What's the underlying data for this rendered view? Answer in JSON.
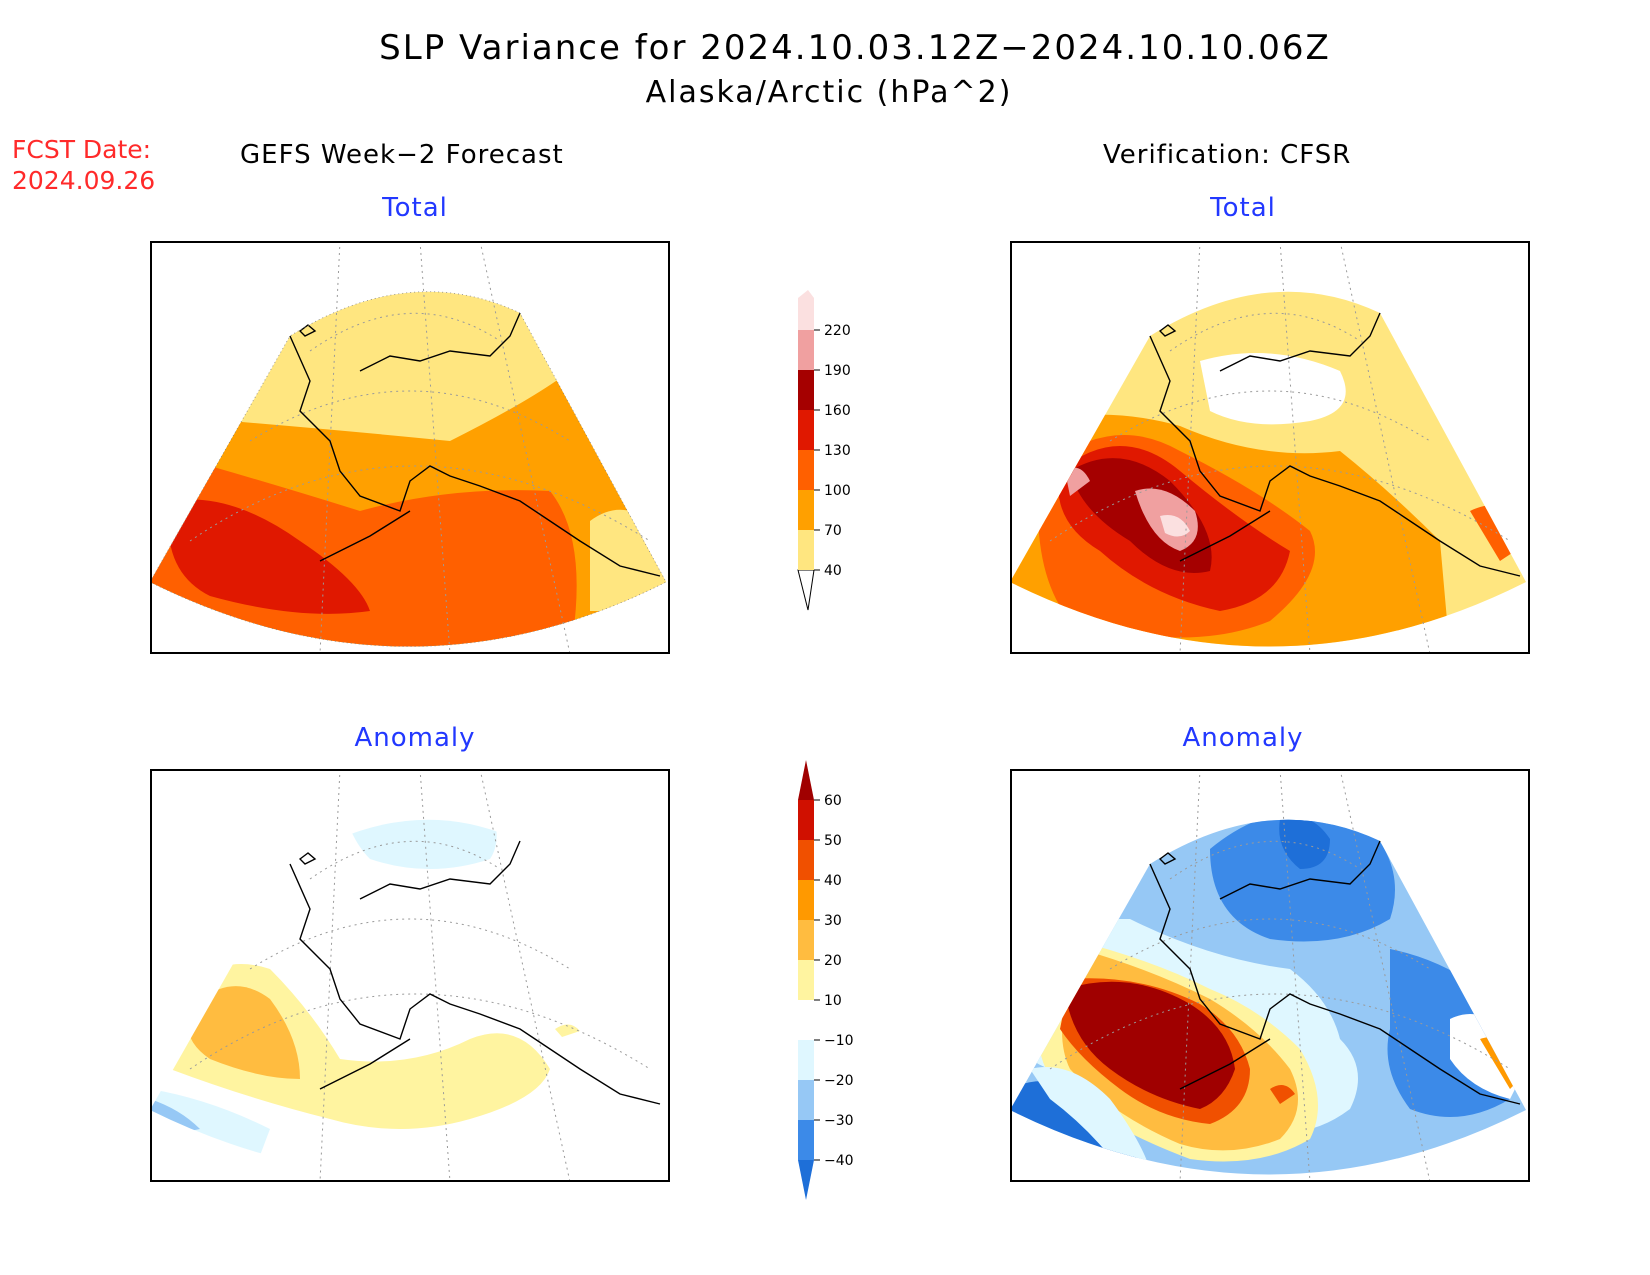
{
  "title": {
    "line1": "SLP Variance for 2024.10.03.12Z−2024.10.10.06Z",
    "line2": "Alaska/Arctic (hPa^2)"
  },
  "fcst_date": {
    "label": "FCST Date:",
    "value": "2024.09.26"
  },
  "columns": {
    "left": "GEFS Week−2 Forecast",
    "right": "Verification: CFSR"
  },
  "panels": {
    "gefs_total": "Total",
    "cfsr_total": "Total",
    "gefs_anomaly": "Anomaly",
    "cfsr_anomaly": "Anomaly"
  },
  "colorbar_total": {
    "ticks": [
      "40",
      "70",
      "100",
      "130",
      "160",
      "190",
      "220"
    ],
    "colors": [
      "#ffe680",
      "#ffa000",
      "#ff6000",
      "#e01800",
      "#a50000",
      "#f0a0a0",
      "#fbe0e0"
    ]
  },
  "colorbar_anomaly": {
    "ticks": [
      "−40",
      "−30",
      "−20",
      "−10",
      "10",
      "20",
      "30",
      "40",
      "50",
      "60"
    ],
    "colors": [
      "#1e6fd8",
      "#3c8ae8",
      "#96c8f5",
      "#dff7ff",
      "#ffffff",
      "#fff4a0",
      "#ffbc40",
      "#ff9900",
      "#f05000",
      "#d01000",
      "#a00000"
    ]
  }
}
